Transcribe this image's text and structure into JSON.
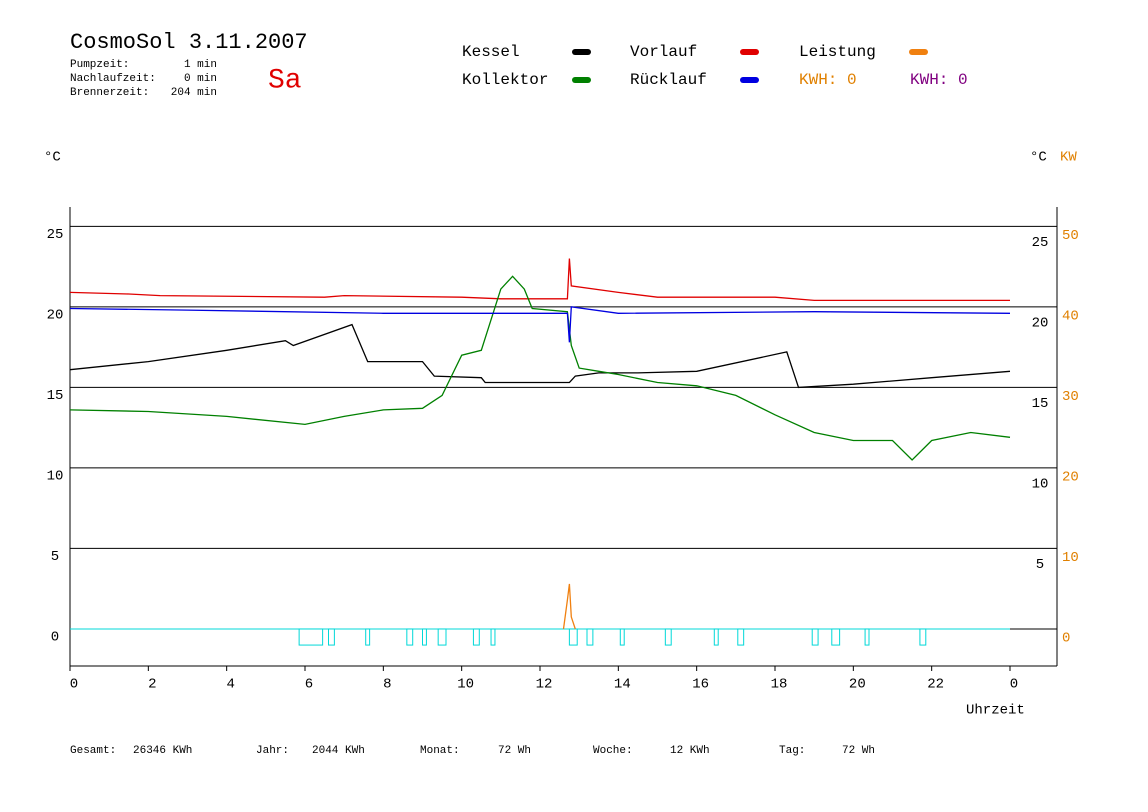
{
  "chart_data": {
    "type": "line",
    "title": "CosmoSol 3.11.2007",
    "day": "Sa",
    "stats": [
      {
        "label": "Pumpzeit:",
        "value": "1 min"
      },
      {
        "label": "Nachlaufzeit:",
        "value": "0 min"
      },
      {
        "label": "Brennerzeit:",
        "value": "204 min"
      }
    ],
    "y_label": "°C",
    "y_right_label": "°C",
    "y2_label": "KW",
    "x_label": "Uhrzeit",
    "xlim": [
      0,
      24
    ],
    "xticks": [
      0,
      2,
      4,
      6,
      8,
      10,
      12,
      14,
      16,
      18,
      20,
      22,
      {
        "value": 24,
        "label": "0"
      }
    ],
    "ylim": [
      -2.3,
      26.2
    ],
    "yticks": [
      0,
      5,
      10,
      15,
      20,
      25
    ],
    "right_yticks": [
      5,
      10,
      15,
      20,
      25
    ],
    "y2lim": [
      -4.6,
      52.4
    ],
    "y2ticks": [
      0,
      10,
      20,
      30,
      40,
      50
    ],
    "grid": true,
    "series": [
      {
        "name": "Kessel",
        "color": "#000000",
        "x": [
          0,
          2,
          4,
          5.5,
          5.7,
          7.2,
          7.6,
          9.0,
          9.3,
          10.5,
          10.6,
          12.75,
          12.9,
          13.5,
          14.5,
          16,
          18.3,
          18.6,
          20,
          22,
          24
        ],
        "values": [
          16.1,
          16.6,
          17.3,
          17.9,
          17.6,
          18.9,
          16.6,
          16.6,
          15.7,
          15.6,
          15.3,
          15.3,
          15.7,
          15.9,
          15.9,
          16.0,
          17.2,
          15.0,
          15.2,
          15.6,
          16.0
        ]
      },
      {
        "name": "Vorlauf",
        "color": "#e00000",
        "x": [
          0,
          1.5,
          2.3,
          6.5,
          7,
          10,
          11,
          12.7,
          12.75,
          12.8,
          14,
          15,
          18,
          19,
          24
        ],
        "values": [
          20.9,
          20.8,
          20.7,
          20.6,
          20.7,
          20.6,
          20.5,
          20.5,
          23.0,
          21.3,
          20.9,
          20.6,
          20.6,
          20.4,
          20.4
        ]
      },
      {
        "name": "Leistung",
        "color": "#f08010",
        "axis": "y2",
        "x": [
          12.6,
          12.7,
          12.75,
          12.8,
          12.9
        ],
        "values": [
          0,
          3.6,
          5.6,
          1.5,
          0
        ]
      },
      {
        "name": "Kollektor",
        "color": "#008000",
        "x": [
          0,
          2,
          4,
          6,
          7,
          8,
          9,
          9.5,
          10,
          10.5,
          11,
          11.3,
          11.6,
          11.8,
          12.7,
          12.8,
          13,
          13.5,
          14,
          15,
          16,
          17,
          18,
          19,
          20,
          21,
          21.5,
          22,
          23,
          24
        ],
        "values": [
          13.6,
          13.5,
          13.2,
          12.7,
          13.2,
          13.6,
          13.7,
          14.5,
          17.0,
          17.3,
          21.1,
          21.9,
          21.1,
          19.9,
          19.7,
          17.6,
          16.2,
          16.0,
          15.8,
          15.3,
          15.1,
          14.5,
          13.3,
          12.2,
          11.7,
          11.7,
          10.5,
          11.7,
          12.2,
          11.9
        ]
      },
      {
        "name": "Rücklauf",
        "color": "#0000e0",
        "x": [
          0,
          3,
          8,
          12.7,
          12.75,
          12.8,
          14,
          19,
          24
        ],
        "values": [
          19.9,
          19.8,
          19.6,
          19.6,
          17.8,
          20.0,
          19.6,
          19.7,
          19.6
        ]
      }
    ],
    "kwh_labels": [
      {
        "label": "KWH: 0",
        "color": "#e08000"
      },
      {
        "label": "KWH: 0",
        "color": "#800080"
      }
    ],
    "pump": {
      "color": "#00d8d8",
      "level": -1.0,
      "intervals": [
        [
          5.85,
          6.45
        ],
        [
          6.6,
          6.75
        ],
        [
          7.55,
          7.65
        ],
        [
          8.6,
          8.75
        ],
        [
          9.0,
          9.1
        ],
        [
          9.4,
          9.6
        ],
        [
          10.3,
          10.45
        ],
        [
          10.75,
          10.85
        ],
        [
          12.75,
          12.95
        ],
        [
          13.2,
          13.35
        ],
        [
          14.05,
          14.15
        ],
        [
          15.2,
          15.35
        ],
        [
          16.45,
          16.55
        ],
        [
          17.05,
          17.2
        ],
        [
          18.95,
          19.1
        ],
        [
          19.45,
          19.65
        ],
        [
          20.3,
          20.4
        ],
        [
          21.7,
          21.85
        ]
      ]
    },
    "totals": [
      {
        "label": "Gesamt:",
        "value": "26346 KWh"
      },
      {
        "label": "Jahr:",
        "value": "2044 KWh"
      },
      {
        "label": "Monat:",
        "value": "72 Wh"
      },
      {
        "label": "Woche:",
        "value": "12 KWh"
      },
      {
        "label": "Tag:",
        "value": "72 Wh"
      }
    ]
  }
}
